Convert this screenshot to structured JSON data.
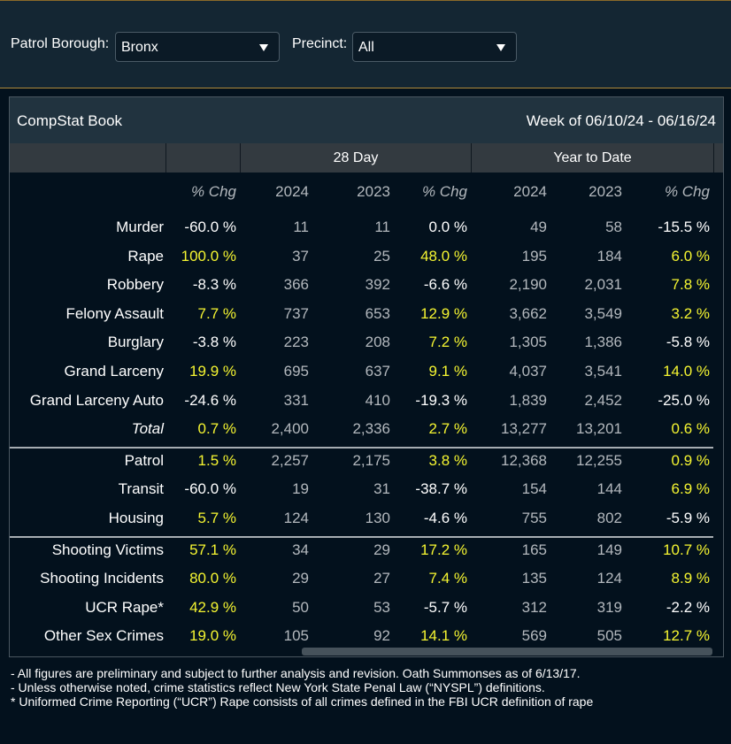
{
  "filters": {
    "borough_label": "Patrol Borough:",
    "borough_value": "Bronx",
    "precinct_label": "Precinct:",
    "precinct_value": "All"
  },
  "panel": {
    "title": "CompStat Book",
    "week": "Week of 06/10/24 - 06/16/24"
  },
  "groups": {
    "day28": "28 Day",
    "ytd": "Year to Date"
  },
  "columns": [
    "% Chg",
    "2024",
    "2023",
    "% Chg",
    "2024",
    "2023",
    "% Chg"
  ],
  "colors": {
    "positive_change": "#f5f531",
    "negative_change": "#ffffff",
    "count": "#b3b8bd"
  },
  "sections": [
    [
      {
        "label": "Murder",
        "v": [
          "-60.0 %",
          "11",
          "11",
          "0.0 %",
          "49",
          "58",
          "-15.5 %"
        ]
      },
      {
        "label": "Rape",
        "v": [
          "100.0 %",
          "37",
          "25",
          "48.0 %",
          "195",
          "184",
          "6.0 %"
        ]
      },
      {
        "label": "Robbery",
        "v": [
          "-8.3 %",
          "366",
          "392",
          "-6.6 %",
          "2,190",
          "2,031",
          "7.8 %"
        ]
      },
      {
        "label": "Felony Assault",
        "v": [
          "7.7 %",
          "737",
          "653",
          "12.9 %",
          "3,662",
          "3,549",
          "3.2 %"
        ]
      },
      {
        "label": "Burglary",
        "v": [
          "-3.8 %",
          "223",
          "208",
          "7.2 %",
          "1,305",
          "1,386",
          "-5.8 %"
        ]
      },
      {
        "label": "Grand Larceny",
        "v": [
          "19.9 %",
          "695",
          "637",
          "9.1 %",
          "4,037",
          "3,541",
          "14.0 %"
        ]
      },
      {
        "label": "Grand Larceny Auto",
        "v": [
          "-24.6 %",
          "331",
          "410",
          "-19.3 %",
          "1,839",
          "2,452",
          "-25.0 %"
        ]
      },
      {
        "label": "Total",
        "total": true,
        "v": [
          "0.7 %",
          "2,400",
          "2,336",
          "2.7 %",
          "13,277",
          "13,201",
          "0.6 %"
        ]
      }
    ],
    [
      {
        "label": "Patrol",
        "v": [
          "1.5 %",
          "2,257",
          "2,175",
          "3.8 %",
          "12,368",
          "12,255",
          "0.9 %"
        ]
      },
      {
        "label": "Transit",
        "v": [
          "-60.0 %",
          "19",
          "31",
          "-38.7 %",
          "154",
          "144",
          "6.9 %"
        ]
      },
      {
        "label": "Housing",
        "v": [
          "5.7 %",
          "124",
          "130",
          "-4.6 %",
          "755",
          "802",
          "-5.9 %"
        ]
      }
    ],
    [
      {
        "label": "Shooting Victims",
        "v": [
          "57.1 %",
          "34",
          "29",
          "17.2 %",
          "165",
          "149",
          "10.7 %"
        ]
      },
      {
        "label": "Shooting Incidents",
        "v": [
          "80.0 %",
          "29",
          "27",
          "7.4 %",
          "135",
          "124",
          "8.9 %"
        ]
      },
      {
        "label": "UCR Rape*",
        "v": [
          "42.9 %",
          "50",
          "53",
          "-5.7 %",
          "312",
          "319",
          "-2.2 %"
        ]
      },
      {
        "label": "Other Sex Crimes",
        "v": [
          "19.0 %",
          "105",
          "92",
          "14.1 %",
          "569",
          "505",
          "12.7 %"
        ]
      }
    ]
  ],
  "notes": [
    "- All figures are preliminary and subject to further analysis and revision. Oath Summonses as of 6/13/17.",
    "- Unless otherwise noted, crime statistics reflect New York State Penal Law (“NYSPL”) definitions.",
    "* Uniformed Crime Reporting (“UCR”) Rape consists of all crimes defined in the FBI UCR definition of rape"
  ]
}
